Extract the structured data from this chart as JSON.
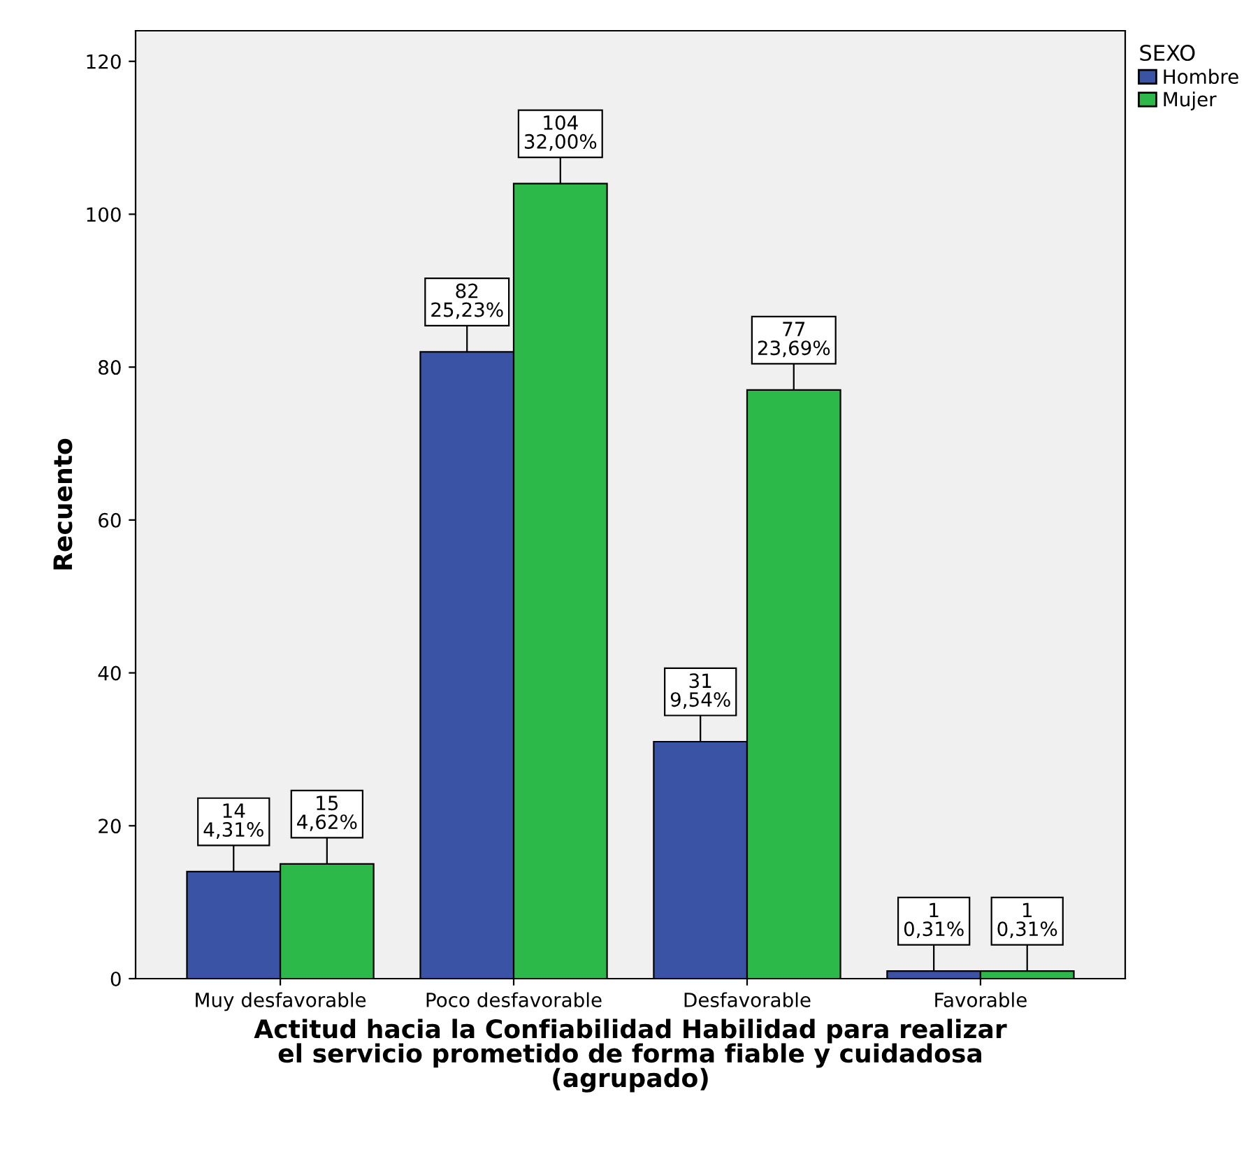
{
  "chart_data": {
    "type": "bar",
    "xlabel": "Actitud hacia la Confiabilidad Habilidad para realizar\nel servicio prometido de forma fiable y cuidadosa\n(agrupado)",
    "ylabel": "Recuento",
    "legend_title": "SEXO",
    "categories": [
      "Muy desfavorable",
      "Poco desfavorable",
      "Desfavorable",
      "Favorable"
    ],
    "series": [
      {
        "name": "Hombre",
        "color": "#3a53a4",
        "values": [
          14,
          82,
          31,
          1
        ],
        "value_labels": [
          "14\n4,31%",
          "82\n25,23%",
          "31\n9,54%",
          "1\n0,31%"
        ]
      },
      {
        "name": "Mujer",
        "color": "#2db84a",
        "values": [
          15,
          104,
          77,
          1
        ],
        "value_labels": [
          "15\n4,62%",
          "104\n32,00%",
          "77\n23,69%",
          "1\n0,31%"
        ]
      }
    ],
    "ylim": [
      0,
      124
    ],
    "yticks": [
      0,
      20,
      40,
      60,
      80,
      100,
      120
    ],
    "grid": false,
    "legend": "top right"
  }
}
